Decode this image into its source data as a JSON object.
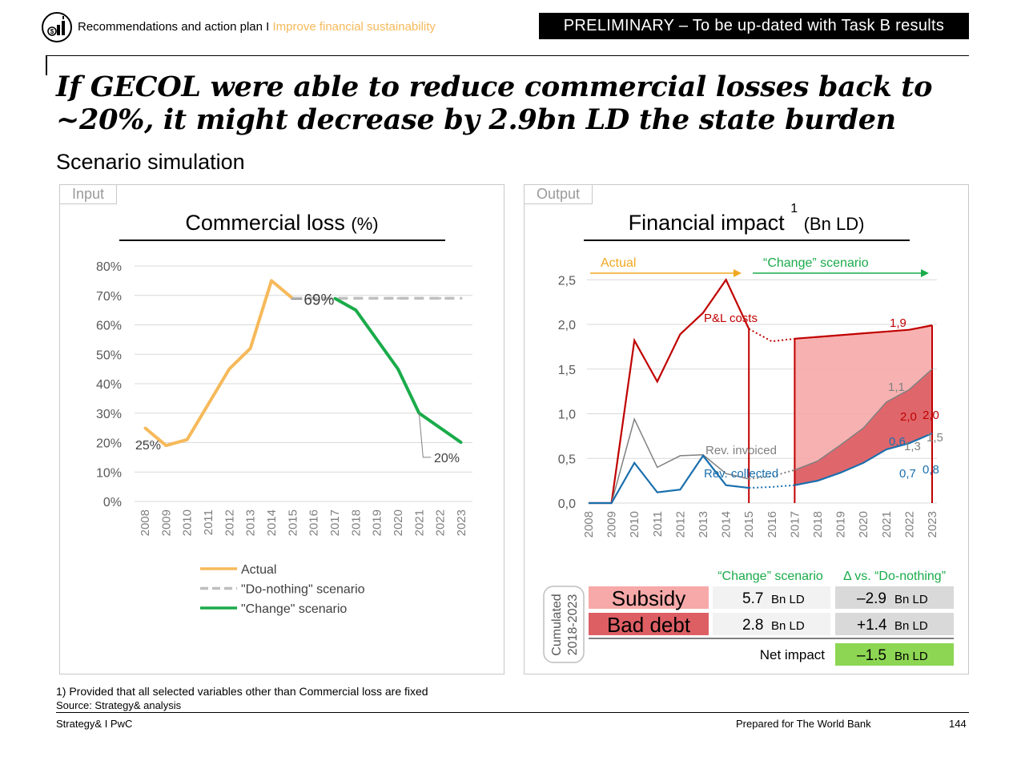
{
  "header": {
    "breadcrumb_main": "Recommendations and action plan I",
    "breadcrumb_sub": "Improve financial sustainability",
    "preliminary_banner": "PRELIMINARY – To be up-dated with Task B results"
  },
  "headline": "If GECOL were able to reduce commercial losses back to ~20%, it might decrease by 2.9bn LD the state burden",
  "subheadline": "Scenario simulation",
  "input_panel": {
    "tab": "Input",
    "title": "Commercial loss",
    "title_unit": "(%)"
  },
  "output_panel": {
    "tab": "Output",
    "title": "Financial impact",
    "title_sup": "1",
    "title_unit": "(Bn LD)"
  },
  "chart_data": [
    {
      "type": "line",
      "title": "Commercial loss (%)",
      "x": [
        "2008",
        "2009",
        "2010",
        "2011",
        "2012",
        "2013",
        "2014",
        "2015",
        "2016",
        "2017",
        "2018",
        "2019",
        "2020",
        "2021",
        "2022",
        "2023"
      ],
      "yticks": [
        "0%",
        "10%",
        "20%",
        "30%",
        "40%",
        "50%",
        "60%",
        "70%",
        "80%"
      ],
      "ylim": [
        0,
        80
      ],
      "grid": true,
      "legend_position": "bottom",
      "series": [
        {
          "name": "Actual",
          "color": "#f6b95a",
          "dash": false,
          "values": [
            25,
            19,
            21,
            33,
            45,
            52,
            75,
            69,
            null,
            null,
            null,
            null,
            null,
            null,
            null,
            null
          ]
        },
        {
          "name": "\"Do-nothing\" scenario",
          "color": "#bfbfbf",
          "dash": true,
          "values": [
            null,
            null,
            null,
            null,
            null,
            null,
            null,
            69,
            69,
            69,
            69,
            69,
            69,
            69,
            69,
            69
          ]
        },
        {
          "name": "\"Change\" scenario",
          "color": "#1aab4a",
          "dash": false,
          "values": [
            null,
            null,
            null,
            null,
            null,
            null,
            null,
            null,
            null,
            69,
            65,
            55,
            45,
            30,
            25,
            20
          ]
        }
      ],
      "data_labels": [
        {
          "text": "25%",
          "x": "2008",
          "y": 25
        },
        {
          "text": "69%",
          "x": "2015",
          "y": 69
        },
        {
          "text": "20%",
          "x": "2023",
          "y": 20
        }
      ]
    },
    {
      "type": "line",
      "title": "Financial impact (Bn LD)",
      "x": [
        "2008",
        "2009",
        "2010",
        "2011",
        "2012",
        "2013",
        "2014",
        "2015",
        "2016",
        "2017",
        "2018",
        "2019",
        "2020",
        "2021",
        "2022",
        "2023"
      ],
      "yticks": [
        "0,0",
        "0,5",
        "1,0",
        "1,5",
        "2,0",
        "2,5"
      ],
      "ylim": [
        0,
        2.6
      ],
      "grid": true,
      "period_labels": {
        "actual": "Actual",
        "change": "“Change” scenario"
      },
      "series": [
        {
          "name": "P&L costs",
          "color": "#c00000",
          "values": [
            0,
            0,
            1.82,
            1.36,
            1.89,
            2.13,
            2.5,
            1.95,
            1.81,
            1.84,
            1.86,
            1.88,
            1.9,
            1.92,
            1.94,
            1.99
          ]
        },
        {
          "name": "Rev. invoiced",
          "color": "#808080",
          "values": [
            0,
            0,
            0.94,
            0.4,
            0.53,
            0.54,
            0.33,
            0.27,
            0.3,
            0.37,
            0.47,
            0.65,
            0.84,
            1.13,
            1.27,
            1.5
          ]
        },
        {
          "name": "Rev. collected",
          "color": "#1a6fad",
          "values": [
            0,
            0,
            0.45,
            0.12,
            0.15,
            0.53,
            0.2,
            0.17,
            0.18,
            0.2,
            0.25,
            0.34,
            0.45,
            0.6,
            0.67,
            0.78
          ]
        }
      ],
      "annotations": [
        "1,9",
        "1,1",
        "2,0",
        "2,0",
        "0,6",
        "1,3",
        "1,5",
        "0,7",
        "0,8"
      ],
      "summary": {
        "period_label": "Cumulated 2018-2023",
        "col1_header": "“Change” scenario",
        "col2_header": "Δ vs. “Do-nothing”",
        "rows": [
          {
            "label": "Subsidy",
            "value": "5.7",
            "delta": "–2.9",
            "unit": "Bn LD"
          },
          {
            "label": "Bad debt",
            "value": "2.8",
            "delta": "+1.4",
            "unit": "Bn LD"
          }
        ],
        "net_label": "Net impact",
        "net_value": "–1.5",
        "net_unit": "Bn LD"
      }
    }
  ],
  "footer": {
    "footnote_mark": "1)",
    "footnote": "Provided that all selected variables other than Commercial loss are fixed",
    "source": "Source: Strategy& analysis",
    "left": "Strategy& I PwC",
    "middle": "Prepared for The World Bank",
    "page": "144"
  }
}
